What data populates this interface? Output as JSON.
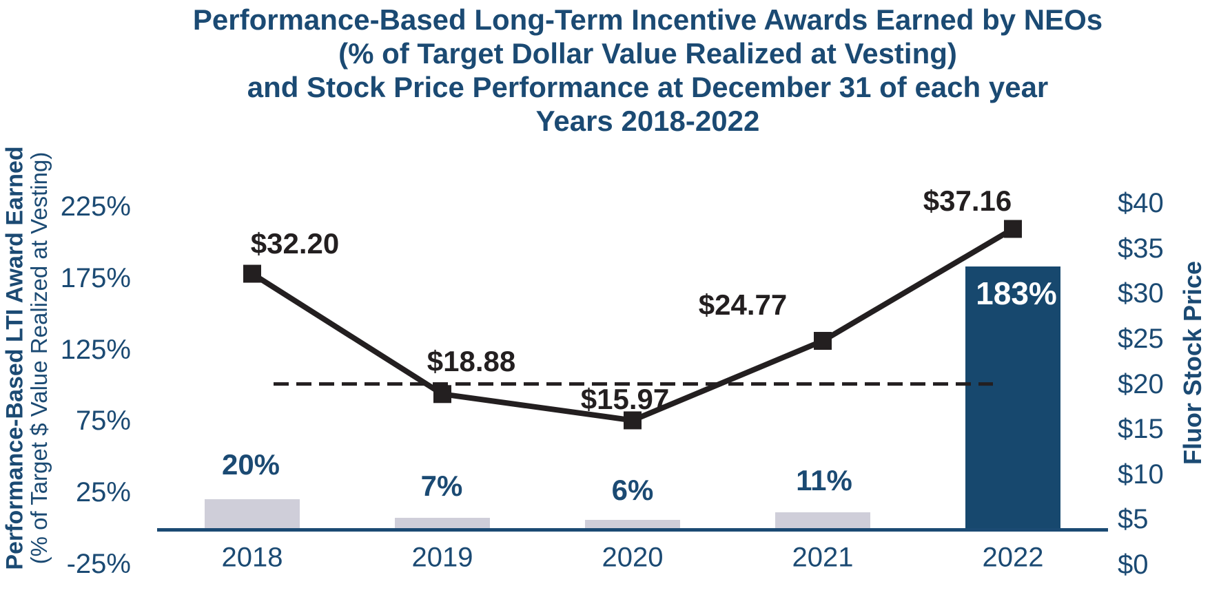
{
  "title": {
    "line1": "Performance-Based Long-Term Incentive Awards Earned by NEOs",
    "line2": "(% of Target Dollar Value Realized at Vesting)",
    "line3": "and Stock Price Performance at December 31 of each year",
    "line4": "Years 2018-2022"
  },
  "left_axis": {
    "title_bold": "Performance-Based LTI Award Earned",
    "title_sub": "(% of Target $ Value Realized at Vesting)",
    "ticks": [
      {
        "label": "225%",
        "value": 225
      },
      {
        "label": "175%",
        "value": 175
      },
      {
        "label": "125%",
        "value": 125
      },
      {
        "label": "75%",
        "value": 75
      },
      {
        "label": "25%",
        "value": 25
      },
      {
        "label": "-25%",
        "value": -25
      }
    ]
  },
  "right_axis": {
    "title": "Fluor Stock Price",
    "ticks": [
      {
        "label": "$40",
        "value": 40
      },
      {
        "label": "$35",
        "value": 35
      },
      {
        "label": "$30",
        "value": 30
      },
      {
        "label": "$25",
        "value": 25
      },
      {
        "label": "$20",
        "value": 20
      },
      {
        "label": "$15",
        "value": 15
      },
      {
        "label": "$10",
        "value": 10
      },
      {
        "label": "$5",
        "value": 5
      },
      {
        "label": "$0",
        "value": 0
      }
    ]
  },
  "chart_data": {
    "type": "combo",
    "title": "Performance-Based Long-Term Incentive Awards Earned by NEOs (% of Target Dollar Value Realized at Vesting) and Stock Price Performance at December 31 of each year, Years 2018-2022",
    "categories": [
      "2018",
      "2019",
      "2020",
      "2021",
      "2022"
    ],
    "series": [
      {
        "name": "Performance-Based LTI Award Earned (% of Target $ Value Realized at Vesting)",
        "type": "bar",
        "axis": "left",
        "unit": "%",
        "values": [
          20,
          7,
          6,
          11,
          183
        ],
        "labels": [
          "20%",
          "7%",
          "6%",
          "11%",
          "183%"
        ]
      },
      {
        "name": "Fluor Stock Price",
        "type": "line",
        "axis": "right",
        "unit": "USD",
        "values": [
          32.2,
          18.88,
          15.97,
          24.77,
          37.16
        ],
        "labels": [
          "$32.20",
          "$18.88",
          "$15.97",
          "$24.77",
          "$37.16"
        ]
      }
    ],
    "highlight_year": "2022",
    "reference_line": {
      "axis": "right",
      "value": 20,
      "style": "dashed"
    },
    "left_ylim": [
      -25,
      225
    ],
    "left_tick_step": 50,
    "right_ylim": [
      0,
      40
    ],
    "right_tick_step": 5,
    "grid": false,
    "legend": false
  },
  "colors": {
    "navy": "#1b4a73",
    "bar_navy": "#17486e",
    "bar_gray": "#cfced9",
    "black": "#231f20",
    "white": "#ffffff",
    "background": "#ffffff"
  }
}
